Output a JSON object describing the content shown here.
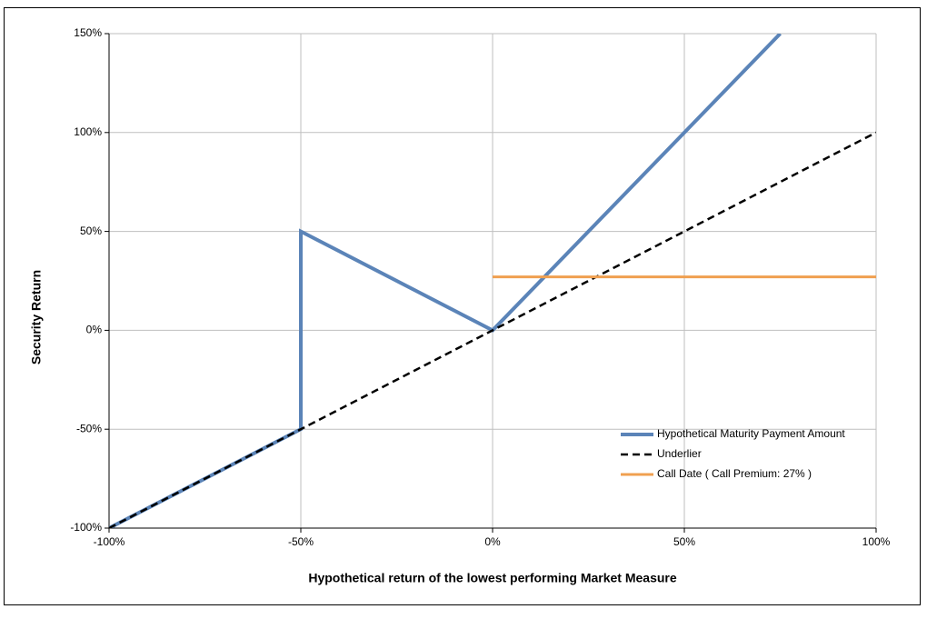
{
  "chart_data": {
    "type": "line",
    "x_label": "Hypothetical return of the lowest performing Market Measure",
    "y_label": "Security Return",
    "xlim": [
      -100,
      100
    ],
    "xticks": [
      {
        "value": -100,
        "label": "-100%"
      },
      {
        "value": -50,
        "label": "-50%"
      },
      {
        "value": 0,
        "label": "0%"
      },
      {
        "value": 50,
        "label": "50%"
      },
      {
        "value": 100,
        "label": "100%"
      }
    ],
    "ylim": [
      -100,
      150
    ],
    "yticks": [
      {
        "value": -100,
        "label": "-100%"
      },
      {
        "value": -50,
        "label": "-50%"
      },
      {
        "value": 0,
        "label": "0%"
      },
      {
        "value": 50,
        "label": "50%"
      },
      {
        "value": 100,
        "label": "100%"
      },
      {
        "value": 150,
        "label": "150%"
      }
    ],
    "grid": true,
    "legend": "lower right",
    "series": [
      {
        "name": "Hypothetical Maturity Payment Amount",
        "color": "#5b84b8",
        "width": 4,
        "dash": false,
        "x": [
          -100,
          -50,
          -50,
          0,
          75
        ],
        "values": [
          -100,
          -50,
          50,
          0,
          150
        ]
      },
      {
        "name": "Underlier",
        "color": "#000000",
        "width": 2.5,
        "dash": true,
        "x": [
          -100,
          100
        ],
        "values": [
          -100,
          100
        ]
      },
      {
        "name": "Call Date ( Call Premium: 27% )",
        "color": "#f0a050",
        "width": 3,
        "dash": false,
        "x": [
          0,
          100
        ],
        "values": [
          27,
          27
        ]
      }
    ]
  }
}
